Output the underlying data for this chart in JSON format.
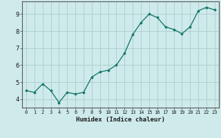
{
  "x": [
    0,
    1,
    2,
    3,
    4,
    5,
    6,
    7,
    8,
    9,
    10,
    11,
    12,
    13,
    14,
    15,
    16,
    17,
    18,
    19,
    20,
    21,
    22,
    23
  ],
  "y": [
    4.5,
    4.4,
    4.9,
    4.5,
    3.8,
    4.4,
    4.3,
    4.4,
    5.3,
    5.6,
    5.7,
    6.0,
    6.7,
    7.8,
    8.5,
    9.0,
    8.8,
    8.25,
    8.1,
    7.85,
    8.25,
    9.2,
    9.4,
    9.25
  ],
  "xlabel": "Humidex (Indice chaleur)",
  "ylim": [
    3.5,
    9.75
  ],
  "xlim": [
    -0.5,
    23.5
  ],
  "yticks": [
    4,
    5,
    6,
    7,
    8,
    9
  ],
  "xticks": [
    0,
    1,
    2,
    3,
    4,
    5,
    6,
    7,
    8,
    9,
    10,
    11,
    12,
    13,
    14,
    15,
    16,
    17,
    18,
    19,
    20,
    21,
    22,
    23
  ],
  "line_color": "#1a7a6e",
  "marker_color": "#1a7a6e",
  "bg_color": "#ceeaea",
  "grid_color": "#b0d0d0",
  "axis_color": "#555555"
}
